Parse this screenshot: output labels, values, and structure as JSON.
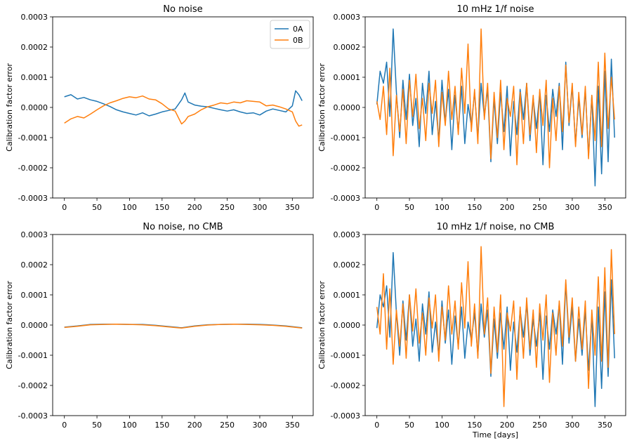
{
  "colors": {
    "0A": "#1f77b4",
    "0B": "#ff7f0e"
  },
  "chart_data": [
    {
      "type": "line",
      "title": "No noise",
      "xlabel": "",
      "ylabel": "Calibration factor error",
      "xlim": [
        -18,
        382
      ],
      "ylim": [
        -0.0003,
        0.0003
      ],
      "xticks": [
        0,
        50,
        100,
        150,
        200,
        250,
        300,
        350
      ],
      "yticks": [
        "-0.0003",
        "-0.0002",
        "-0.0001",
        "0.0000",
        "0.0001",
        "0.0002",
        "0.0003"
      ],
      "legend": {
        "placement": "top-right",
        "entries": [
          "0A",
          "0B"
        ]
      },
      "series": [
        {
          "name": "0A",
          "x": [
            0,
            10,
            20,
            30,
            40,
            50,
            60,
            70,
            80,
            90,
            100,
            110,
            120,
            130,
            140,
            150,
            160,
            170,
            180,
            185,
            190,
            200,
            210,
            220,
            230,
            240,
            250,
            260,
            270,
            280,
            290,
            300,
            310,
            320,
            330,
            340,
            350,
            355,
            360,
            365
          ],
          "y": [
            3.5e-05,
            4.2e-05,
            2.8e-05,
            3.3e-05,
            2.5e-05,
            2e-05,
            1.2e-05,
            3e-06,
            -8e-06,
            -1.5e-05,
            -2e-05,
            -2.5e-05,
            -1.8e-05,
            -2.8e-05,
            -2.2e-05,
            -1.5e-05,
            -1e-05,
            -5e-06,
            2.5e-05,
            4.8e-05,
            1.8e-05,
            8e-06,
            4e-06,
            2e-06,
            -3e-06,
            -8e-06,
            -1.2e-05,
            -8e-06,
            -1.5e-05,
            -2e-05,
            -1.8e-05,
            -2.5e-05,
            -1.2e-05,
            -5e-06,
            -1e-05,
            -1.5e-05,
            5e-06,
            5.5e-05,
            4.2e-05,
            2.2e-05
          ]
        },
        {
          "name": "0B",
          "x": [
            0,
            10,
            20,
            30,
            40,
            50,
            60,
            70,
            80,
            90,
            100,
            110,
            120,
            130,
            140,
            150,
            160,
            170,
            180,
            185,
            190,
            200,
            210,
            220,
            230,
            240,
            250,
            260,
            270,
            280,
            290,
            300,
            310,
            320,
            330,
            340,
            350,
            355,
            360,
            365
          ],
          "y": [
            -5.2e-05,
            -3.8e-05,
            -3e-05,
            -3.5e-05,
            -2.2e-05,
            -8e-06,
            5e-06,
            1.5e-05,
            2.2e-05,
            3e-05,
            3.5e-05,
            3.2e-05,
            3.8e-05,
            2.8e-05,
            2.5e-05,
            1.2e-05,
            -5e-06,
            -1.2e-05,
            -5.5e-05,
            -4.5e-05,
            -3e-05,
            -2.2e-05,
            -8e-06,
            2e-06,
            8e-06,
            1.5e-05,
            1.2e-05,
            1.8e-05,
            1.5e-05,
            2.2e-05,
            2e-05,
            1.8e-05,
            5e-06,
            8e-06,
            2e-06,
            -5e-06,
            -1.5e-05,
            -4.5e-05,
            -6.2e-05,
            -5.8e-05
          ]
        }
      ]
    },
    {
      "type": "line",
      "title": "10 mHz 1/f noise",
      "xlabel": "",
      "ylabel": "Calibration factor error",
      "xlim": [
        -18,
        382
      ],
      "ylim": [
        -0.0003,
        0.0003
      ],
      "xticks": [
        0,
        50,
        100,
        150,
        200,
        250,
        300,
        350
      ],
      "yticks": [
        "-0.0003",
        "-0.0002",
        "-0.0001",
        "0.0000",
        "0.0001",
        "0.0002",
        "0.0003"
      ],
      "series": [
        {
          "name": "0A",
          "x": [
            0,
            5,
            10,
            15,
            20,
            25,
            30,
            35,
            40,
            45,
            50,
            55,
            60,
            65,
            70,
            75,
            80,
            85,
            90,
            95,
            100,
            105,
            110,
            115,
            120,
            125,
            130,
            135,
            140,
            145,
            150,
            155,
            160,
            165,
            170,
            175,
            180,
            185,
            190,
            195,
            200,
            205,
            210,
            215,
            220,
            225,
            230,
            235,
            240,
            245,
            250,
            255,
            260,
            265,
            270,
            275,
            280,
            285,
            290,
            295,
            300,
            305,
            310,
            315,
            320,
            325,
            330,
            335,
            340,
            345,
            350,
            355,
            360,
            365
          ],
          "y": [
            1e-05,
            0.00012,
            8e-05,
            0.00015,
            -3e-05,
            0.00026,
            5e-05,
            -0.0001,
            9e-05,
            -4e-05,
            0.00011,
            -6e-05,
            3e-05,
            -0.00013,
            8e-05,
            -2e-05,
            0.00012,
            -9e-05,
            2e-05,
            -0.00011,
            9e-05,
            -5e-05,
            6e-05,
            -0.00014,
            4e-05,
            -8e-05,
            7e-05,
            -0.00012,
            1e-05,
            -6e-05,
            5e-05,
            -0.0001,
            8e-05,
            -3e-05,
            6e-05,
            -0.00018,
            3e-05,
            -0.00012,
            5e-05,
            -8e-05,
            7e-05,
            -0.00016,
            2e-05,
            -9e-05,
            6e-05,
            -4e-05,
            8e-05,
            -0.00011,
            3e-05,
            -7e-05,
            5e-05,
            -0.00019,
            4e-05,
            -8e-05,
            6e-05,
            -3e-05,
            8e-05,
            -0.00014,
            0.00015,
            -6e-05,
            7e-05,
            -0.00012,
            3e-05,
            -0.0001,
            6e-05,
            -0.00016,
            4e-05,
            -0.00026,
            7e-05,
            -0.00022,
            0.00012,
            -0.00018,
            0.00016,
            -0.0001
          ]
        },
        {
          "name": "0B",
          "x": [
            0,
            5,
            10,
            15,
            20,
            25,
            30,
            35,
            40,
            45,
            50,
            55,
            60,
            65,
            70,
            75,
            80,
            85,
            90,
            95,
            100,
            105,
            110,
            115,
            120,
            125,
            130,
            135,
            140,
            145,
            150,
            155,
            160,
            165,
            170,
            175,
            180,
            185,
            190,
            195,
            200,
            205,
            210,
            215,
            220,
            225,
            230,
            235,
            240,
            245,
            250,
            255,
            260,
            265,
            270,
            275,
            280,
            285,
            290,
            295,
            300,
            305,
            310,
            315,
            320,
            325,
            330,
            335,
            340,
            345,
            350,
            355,
            360,
            365
          ],
          "y": [
            2e-05,
            -4e-05,
            7e-05,
            -9e-05,
            0.00013,
            -0.00016,
            4e-05,
            -8e-05,
            6e-05,
            -0.00012,
            9e-05,
            -3e-05,
            0.00011,
            -7e-05,
            3e-05,
            -0.00011,
            8e-05,
            -2e-05,
            9e-05,
            -0.00013,
            5e-05,
            -6e-05,
            0.00012,
            -4e-05,
            7e-05,
            -9e-05,
            0.00013,
            -2e-05,
            0.00021,
            -8e-05,
            6e-05,
            -0.00012,
            0.00026,
            -4e-05,
            8e-05,
            -0.00017,
            5e-05,
            -0.0001,
            9e-05,
            -0.00014,
            3e-05,
            -3e-05,
            7e-05,
            -0.00019,
            5e-05,
            -0.00012,
            8e-05,
            -9e-05,
            4e-05,
            -0.00015,
            6e-05,
            -6e-05,
            9e-05,
            -0.0002,
            3e-05,
            -0.00011,
            7e-05,
            -8e-05,
            0.00014,
            -5e-05,
            8e-05,
            -0.00013,
            5e-05,
            -9e-05,
            7e-05,
            -0.00017,
            4e-05,
            -0.00011,
            0.00015,
            -0.00013,
            0.00018,
            -7e-05,
            0.0001,
            -4e-05
          ]
        }
      ]
    },
    {
      "type": "line",
      "title": "No noise, no CMB",
      "xlabel": "",
      "ylabel": "Calibration factor error",
      "xlim": [
        -18,
        382
      ],
      "ylim": [
        -0.0003,
        0.0003
      ],
      "xticks": [
        0,
        50,
        100,
        150,
        200,
        250,
        300,
        350
      ],
      "yticks": [
        "-0.0003",
        "-0.0002",
        "-0.0001",
        "0.0000",
        "0.0001",
        "0.0002",
        "0.0003"
      ],
      "series": [
        {
          "name": "0A",
          "x": [
            0,
            20,
            40,
            60,
            80,
            100,
            120,
            140,
            160,
            180,
            200,
            220,
            240,
            260,
            280,
            300,
            320,
            340,
            365
          ],
          "y": [
            -7e-06,
            -3e-06,
            2e-06,
            3e-06,
            3e-06,
            2e-06,
            2e-06,
            -1e-06,
            -5e-06,
            -9e-06,
            -3e-06,
            1e-06,
            2e-06,
            3e-06,
            3e-06,
            2e-06,
            0.0,
            -3e-06,
            -9e-06
          ]
        },
        {
          "name": "0B",
          "x": [
            0,
            20,
            40,
            60,
            80,
            100,
            120,
            140,
            160,
            180,
            200,
            220,
            240,
            260,
            280,
            300,
            320,
            340,
            365
          ],
          "y": [
            -8e-06,
            -4e-06,
            1e-06,
            2e-06,
            3e-06,
            2e-06,
            1e-06,
            -2e-06,
            -6e-06,
            -1e-05,
            -4e-06,
            0.0,
            2e-06,
            3e-06,
            2e-06,
            1e-06,
            -1e-06,
            -4e-06,
            -1e-05
          ]
        }
      ]
    },
    {
      "type": "line",
      "title": "10 mHz 1/f noise, no CMB",
      "xlabel": "Time [days]",
      "ylabel": "Calibration factor error",
      "xlim": [
        -18,
        382
      ],
      "ylim": [
        -0.0003,
        0.0003
      ],
      "xticks": [
        0,
        50,
        100,
        150,
        200,
        250,
        300,
        350
      ],
      "yticks": [
        "-0.0003",
        "-0.0002",
        "-0.0001",
        "0.0000",
        "0.0001",
        "0.0002",
        "0.0003"
      ],
      "series": [
        {
          "name": "0A",
          "x": [
            0,
            5,
            10,
            15,
            20,
            25,
            30,
            35,
            40,
            45,
            50,
            55,
            60,
            65,
            70,
            75,
            80,
            85,
            90,
            95,
            100,
            105,
            110,
            115,
            120,
            125,
            130,
            135,
            140,
            145,
            150,
            155,
            160,
            165,
            170,
            175,
            180,
            185,
            190,
            195,
            200,
            205,
            210,
            215,
            220,
            225,
            230,
            235,
            240,
            245,
            250,
            255,
            260,
            265,
            270,
            275,
            280,
            285,
            290,
            295,
            300,
            305,
            310,
            315,
            320,
            325,
            330,
            335,
            340,
            345,
            350,
            355,
            360,
            365
          ],
          "y": [
            -1e-05,
            0.0001,
            6e-05,
            0.00013,
            -4e-05,
            0.00024,
            4e-05,
            -0.0001,
            8e-05,
            -5e-05,
            0.0001,
            -7e-05,
            2e-05,
            -0.00012,
            7e-05,
            -3e-05,
            0.00011,
            -9e-05,
            1e-05,
            -0.0001,
            8e-05,
            -6e-05,
            5e-05,
            -0.00013,
            3e-05,
            -7e-05,
            6e-05,
            -0.00011,
            1e-05,
            -5e-05,
            4e-05,
            -0.0001,
            7e-05,
            -4e-05,
            5e-05,
            -0.00017,
            2e-05,
            -0.00011,
            4e-05,
            -8e-05,
            6e-05,
            -0.00015,
            1e-05,
            -9e-05,
            5e-05,
            -4e-05,
            7e-05,
            -0.0001,
            2e-05,
            -7e-05,
            4e-05,
            -0.00018,
            3e-05,
            -8e-05,
            5e-05,
            -3e-05,
            7e-05,
            -0.00013,
            0.00014,
            -6e-05,
            6e-05,
            -0.00012,
            2e-05,
            -0.0001,
            5e-05,
            -0.00015,
            3e-05,
            -0.00027,
            6e-05,
            -0.00021,
            0.00011,
            -0.00017,
            0.00015,
            -0.00011
          ]
        },
        {
          "name": "0B",
          "x": [
            0,
            5,
            10,
            15,
            20,
            25,
            30,
            35,
            40,
            45,
            50,
            55,
            60,
            65,
            70,
            75,
            80,
            85,
            90,
            95,
            100,
            105,
            110,
            115,
            120,
            125,
            130,
            135,
            140,
            145,
            150,
            155,
            160,
            165,
            170,
            175,
            180,
            185,
            190,
            195,
            200,
            205,
            210,
            215,
            220,
            225,
            230,
            235,
            240,
            245,
            250,
            255,
            260,
            265,
            270,
            275,
            280,
            285,
            290,
            295,
            300,
            305,
            310,
            315,
            320,
            325,
            330,
            335,
            340,
            345,
            350,
            355,
            360,
            365
          ],
          "y": [
            6e-05,
            -3e-05,
            0.00017,
            -8e-05,
            0.00012,
            -0.00013,
            5e-05,
            -7e-05,
            7e-05,
            -0.00011,
            0.0001,
            -2e-05,
            0.00012,
            -6e-05,
            4e-05,
            -0.0001,
            9e-05,
            -1e-05,
            0.0001,
            -0.00012,
            6e-05,
            -5e-05,
            0.00013,
            -3e-05,
            8e-05,
            -8e-05,
            0.00014,
            -1e-05,
            0.00021,
            -7e-05,
            7e-05,
            -0.00011,
            0.00026,
            -3e-05,
            9e-05,
            -0.00016,
            6e-05,
            -9e-05,
            0.0001,
            -0.00027,
            4e-05,
            -2e-05,
            8e-05,
            -0.00018,
            6e-05,
            -0.00011,
            9e-05,
            -8e-05,
            5e-05,
            -0.00014,
            7e-05,
            -5e-05,
            0.0001,
            -0.00019,
            4e-05,
            -0.0001,
            8e-05,
            -7e-05,
            0.00015,
            -4e-05,
            9e-05,
            -0.00012,
            6e-05,
            -8e-05,
            8e-05,
            -0.00021,
            5e-05,
            -0.0001,
            0.00016,
            -0.00012,
            0.00019,
            -0.00014,
            0.00025,
            -3e-05
          ]
        }
      ]
    }
  ]
}
